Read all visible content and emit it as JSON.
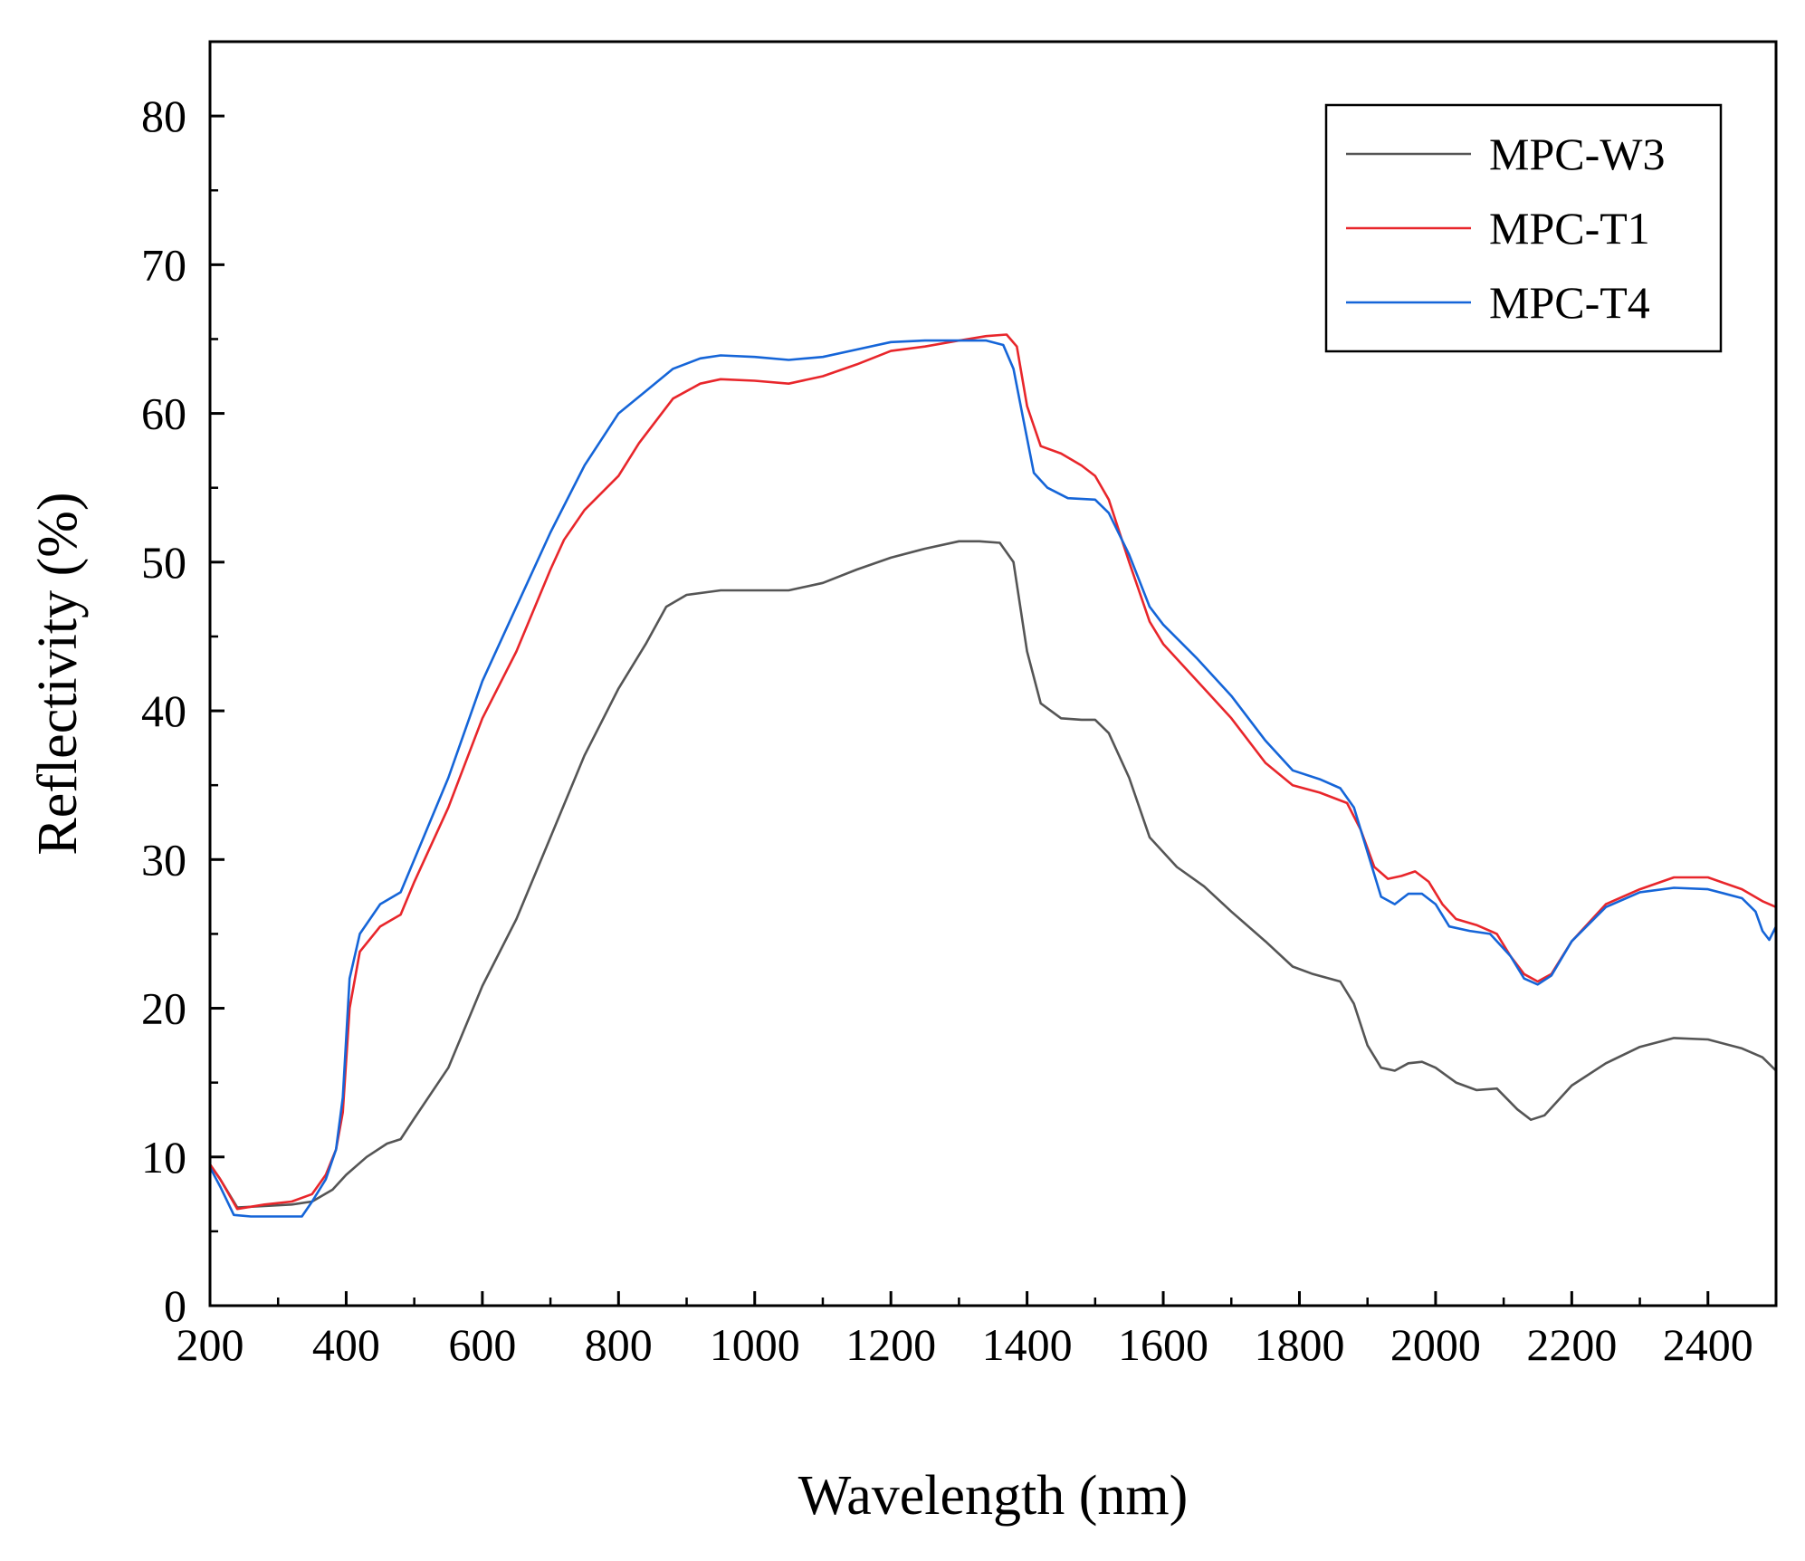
{
  "chart_data": {
    "type": "line",
    "title": "",
    "xlabel": "Wavelength (nm)",
    "ylabel": "Reflectivity (%)",
    "xlim": [
      200,
      2500
    ],
    "ylim": [
      0,
      85
    ],
    "x_ticks": [
      200,
      400,
      600,
      800,
      1000,
      1200,
      1400,
      1600,
      1800,
      2000,
      2200,
      2400
    ],
    "x_tick_labels": [
      "200",
      "400",
      "600",
      "800",
      "1000",
      "1200",
      "1400",
      "1600",
      "1800",
      "2000",
      "2200",
      "2400"
    ],
    "y_ticks": [
      0,
      10,
      20,
      30,
      40,
      50,
      60,
      70,
      80
    ],
    "y_tick_labels": [
      "0",
      "10",
      "20",
      "30",
      "40",
      "50",
      "60",
      "70",
      "80"
    ],
    "grid": false,
    "legend_position": "top-right",
    "series": [
      {
        "name": "MPC-W3",
        "color": "#555555",
        "points": [
          [
            200,
            9.5
          ],
          [
            215,
            8.5
          ],
          [
            240,
            6.6
          ],
          [
            280,
            6.7
          ],
          [
            320,
            6.8
          ],
          [
            350,
            7.0
          ],
          [
            380,
            7.8
          ],
          [
            400,
            8.8
          ],
          [
            430,
            10.0
          ],
          [
            460,
            10.9
          ],
          [
            480,
            11.2
          ],
          [
            500,
            12.6
          ],
          [
            550,
            16.0
          ],
          [
            600,
            21.5
          ],
          [
            650,
            26.0
          ],
          [
            700,
            31.5
          ],
          [
            750,
            37.0
          ],
          [
            800,
            41.5
          ],
          [
            840,
            44.5
          ],
          [
            870,
            47.0
          ],
          [
            900,
            47.8
          ],
          [
            950,
            48.1
          ],
          [
            1000,
            48.1
          ],
          [
            1050,
            48.1
          ],
          [
            1100,
            48.6
          ],
          [
            1150,
            49.5
          ],
          [
            1200,
            50.3
          ],
          [
            1250,
            50.9
          ],
          [
            1300,
            51.4
          ],
          [
            1330,
            51.4
          ],
          [
            1360,
            51.3
          ],
          [
            1380,
            50.0
          ],
          [
            1400,
            44.0
          ],
          [
            1420,
            40.5
          ],
          [
            1450,
            39.5
          ],
          [
            1480,
            39.4
          ],
          [
            1500,
            39.4
          ],
          [
            1520,
            38.5
          ],
          [
            1550,
            35.5
          ],
          [
            1580,
            31.5
          ],
          [
            1620,
            29.5
          ],
          [
            1660,
            28.2
          ],
          [
            1700,
            26.5
          ],
          [
            1750,
            24.5
          ],
          [
            1790,
            22.8
          ],
          [
            1820,
            22.3
          ],
          [
            1860,
            21.8
          ],
          [
            1880,
            20.3
          ],
          [
            1900,
            17.5
          ],
          [
            1920,
            16.0
          ],
          [
            1940,
            15.8
          ],
          [
            1960,
            16.3
          ],
          [
            1980,
            16.4
          ],
          [
            2000,
            16.0
          ],
          [
            2030,
            15.0
          ],
          [
            2060,
            14.5
          ],
          [
            2090,
            14.6
          ],
          [
            2120,
            13.2
          ],
          [
            2140,
            12.5
          ],
          [
            2160,
            12.8
          ],
          [
            2200,
            14.8
          ],
          [
            2250,
            16.3
          ],
          [
            2300,
            17.4
          ],
          [
            2350,
            18.0
          ],
          [
            2400,
            17.9
          ],
          [
            2450,
            17.3
          ],
          [
            2480,
            16.7
          ],
          [
            2500,
            15.8
          ]
        ]
      },
      {
        "name": "MPC-T1",
        "color": "#e8262b",
        "points": [
          [
            200,
            9.5
          ],
          [
            215,
            8.5
          ],
          [
            240,
            6.5
          ],
          [
            280,
            6.8
          ],
          [
            320,
            7.0
          ],
          [
            350,
            7.5
          ],
          [
            370,
            8.8
          ],
          [
            385,
            10.5
          ],
          [
            395,
            13.0
          ],
          [
            405,
            20.0
          ],
          [
            420,
            23.8
          ],
          [
            450,
            25.5
          ],
          [
            480,
            26.3
          ],
          [
            500,
            28.5
          ],
          [
            550,
            33.5
          ],
          [
            600,
            39.5
          ],
          [
            650,
            44.0
          ],
          [
            700,
            49.5
          ],
          [
            720,
            51.5
          ],
          [
            750,
            53.5
          ],
          [
            800,
            55.8
          ],
          [
            830,
            58.0
          ],
          [
            860,
            59.8
          ],
          [
            880,
            61.0
          ],
          [
            920,
            62.0
          ],
          [
            950,
            62.3
          ],
          [
            1000,
            62.2
          ],
          [
            1050,
            62.0
          ],
          [
            1100,
            62.5
          ],
          [
            1150,
            63.3
          ],
          [
            1200,
            64.2
          ],
          [
            1250,
            64.5
          ],
          [
            1300,
            64.9
          ],
          [
            1340,
            65.2
          ],
          [
            1370,
            65.3
          ],
          [
            1385,
            64.5
          ],
          [
            1400,
            60.5
          ],
          [
            1420,
            57.8
          ],
          [
            1450,
            57.3
          ],
          [
            1480,
            56.5
          ],
          [
            1500,
            55.8
          ],
          [
            1520,
            54.2
          ],
          [
            1550,
            50.0
          ],
          [
            1580,
            46.0
          ],
          [
            1600,
            44.5
          ],
          [
            1650,
            42.0
          ],
          [
            1700,
            39.5
          ],
          [
            1750,
            36.5
          ],
          [
            1790,
            35.0
          ],
          [
            1830,
            34.5
          ],
          [
            1870,
            33.8
          ],
          [
            1890,
            32.0
          ],
          [
            1910,
            29.5
          ],
          [
            1930,
            28.7
          ],
          [
            1950,
            28.9
          ],
          [
            1970,
            29.2
          ],
          [
            1990,
            28.5
          ],
          [
            2010,
            27.0
          ],
          [
            2030,
            26.0
          ],
          [
            2060,
            25.6
          ],
          [
            2090,
            25.0
          ],
          [
            2110,
            23.5
          ],
          [
            2130,
            22.3
          ],
          [
            2150,
            21.8
          ],
          [
            2170,
            22.3
          ],
          [
            2200,
            24.5
          ],
          [
            2250,
            27.0
          ],
          [
            2300,
            28.0
          ],
          [
            2350,
            28.8
          ],
          [
            2400,
            28.8
          ],
          [
            2450,
            28.0
          ],
          [
            2480,
            27.2
          ],
          [
            2500,
            26.8
          ]
        ]
      },
      {
        "name": "MPC-T4",
        "color": "#1565d8",
        "points": [
          [
            200,
            9.3
          ],
          [
            215,
            8.0
          ],
          [
            235,
            6.1
          ],
          [
            260,
            6.0
          ],
          [
            300,
            6.0
          ],
          [
            335,
            6.0
          ],
          [
            350,
            7.0
          ],
          [
            370,
            8.5
          ],
          [
            385,
            10.5
          ],
          [
            395,
            14.0
          ],
          [
            405,
            22.0
          ],
          [
            420,
            25.0
          ],
          [
            450,
            27.0
          ],
          [
            480,
            27.8
          ],
          [
            500,
            30.0
          ],
          [
            550,
            35.5
          ],
          [
            600,
            42.0
          ],
          [
            650,
            47.0
          ],
          [
            700,
            52.0
          ],
          [
            750,
            56.5
          ],
          [
            800,
            60.0
          ],
          [
            840,
            61.5
          ],
          [
            880,
            63.0
          ],
          [
            920,
            63.7
          ],
          [
            950,
            63.9
          ],
          [
            1000,
            63.8
          ],
          [
            1050,
            63.6
          ],
          [
            1100,
            63.8
          ],
          [
            1150,
            64.3
          ],
          [
            1200,
            64.8
          ],
          [
            1250,
            64.9
          ],
          [
            1300,
            64.9
          ],
          [
            1340,
            64.9
          ],
          [
            1365,
            64.6
          ],
          [
            1380,
            63.0
          ],
          [
            1395,
            59.5
          ],
          [
            1410,
            56.0
          ],
          [
            1430,
            55.0
          ],
          [
            1460,
            54.3
          ],
          [
            1500,
            54.2
          ],
          [
            1520,
            53.3
          ],
          [
            1550,
            50.5
          ],
          [
            1580,
            47.0
          ],
          [
            1600,
            45.8
          ],
          [
            1650,
            43.5
          ],
          [
            1700,
            41.0
          ],
          [
            1750,
            38.0
          ],
          [
            1790,
            36.0
          ],
          [
            1830,
            35.4
          ],
          [
            1860,
            34.8
          ],
          [
            1880,
            33.5
          ],
          [
            1900,
            30.5
          ],
          [
            1920,
            27.5
          ],
          [
            1940,
            27.0
          ],
          [
            1960,
            27.7
          ],
          [
            1980,
            27.7
          ],
          [
            2000,
            27.0
          ],
          [
            2020,
            25.5
          ],
          [
            2050,
            25.2
          ],
          [
            2080,
            25.0
          ],
          [
            2110,
            23.5
          ],
          [
            2130,
            22.0
          ],
          [
            2150,
            21.6
          ],
          [
            2170,
            22.2
          ],
          [
            2200,
            24.5
          ],
          [
            2250,
            26.8
          ],
          [
            2300,
            27.8
          ],
          [
            2350,
            28.1
          ],
          [
            2400,
            28.0
          ],
          [
            2450,
            27.4
          ],
          [
            2470,
            26.5
          ],
          [
            2480,
            25.2
          ],
          [
            2490,
            24.6
          ],
          [
            2500,
            25.5
          ]
        ]
      }
    ]
  }
}
